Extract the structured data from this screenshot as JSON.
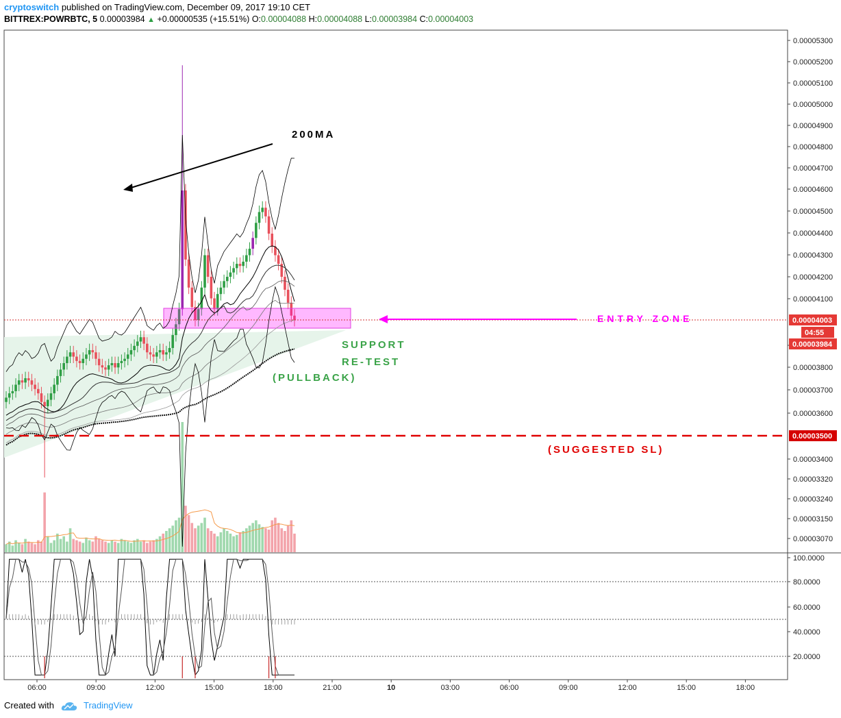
{
  "header": {
    "author": "cryptoswitch",
    "published_text": "published on TradingView.com, December 09, 2017 19:10 CET",
    "symbol": "BITTREX:POWRBTC, 5",
    "last_price": "0.00003984",
    "change": "+0.00000535 (+15.51%)",
    "o_label": "O:",
    "o_value": "0.00004088",
    "h_label": "H:",
    "h_value": "0.00004088",
    "l_label": "L:",
    "l_value": "0.00003984",
    "c_label": "C:",
    "c_value": "0.00004003"
  },
  "footer": {
    "created_with": "Created with",
    "brand": "TradingView"
  },
  "colors": {
    "up": "#2e9e44",
    "down": "#e8505b",
    "accent_magenta": "#ff00ff",
    "support_green": "#3aa348",
    "sl_red": "#e00000",
    "purple_candle": "#9c27b0"
  },
  "chart_data": {
    "type": "candlestick",
    "timeframe": "5",
    "price_axis": {
      "ticks": [
        "0.00005300",
        "0.00005200",
        "0.00005100",
        "0.00005000",
        "0.00004900",
        "0.00004800",
        "0.00004700",
        "0.00004600",
        "0.00004500",
        "0.00004400",
        "0.00004300",
        "0.00004200",
        "0.00004100",
        "0.00004000",
        "0.00003900",
        "0.00003800",
        "0.00003700",
        "0.00003600",
        "0.00003500",
        "0.00003400",
        "0.00003320",
        "0.00003240",
        "0.00003150",
        "0.00003070"
      ],
      "current_label": "0.00004003",
      "countdown": "04:55",
      "last_label": "0.00003984",
      "sl_label": "0.00003500"
    },
    "time_axis": {
      "ticks": [
        "06:00",
        "09:00",
        "12:00",
        "15:00",
        "18:00",
        "21:00",
        "10",
        "03:00",
        "06:00",
        "09:00",
        "12:00",
        "15:00",
        "18:00"
      ]
    },
    "oscillator_axis": {
      "ticks": [
        "100.0000",
        "80.0000",
        "60.0000",
        "40.0000",
        "20.0000"
      ]
    },
    "annotations": {
      "ma_label": "200MA",
      "entry_zone": "ENTRY ZONE",
      "support_line1": "SUPPORT",
      "support_line2": "RE-TEST",
      "support_line3": "(PULLBACK)",
      "suggested_sl": "(SUGGESTED SL)"
    },
    "closes": [
      3.64,
      3.66,
      3.67,
      3.7,
      3.72,
      3.71,
      3.73,
      3.72,
      3.7,
      3.68,
      3.66,
      3.62,
      3.6,
      3.63,
      3.66,
      3.7,
      3.74,
      3.77,
      3.8,
      3.83,
      3.85,
      3.83,
      3.81,
      3.8,
      3.82,
      3.84,
      3.86,
      3.85,
      3.82,
      3.79,
      3.78,
      3.77,
      3.79,
      3.8,
      3.78,
      3.8,
      3.81,
      3.82,
      3.84,
      3.86,
      3.88,
      3.9,
      3.92,
      3.89,
      3.85,
      3.84,
      3.83,
      3.85,
      3.86,
      3.84,
      3.85,
      3.87,
      3.93,
      3.98,
      4.05,
      4.6,
      4.28,
      4.15,
      4.06,
      4.0,
      4.05,
      4.15,
      4.3,
      4.2,
      4.1,
      4.05,
      4.12,
      4.15,
      4.18,
      4.2,
      4.22,
      4.24,
      4.26,
      4.25,
      4.27,
      4.3,
      4.33,
      4.38,
      4.45,
      4.5,
      4.52,
      4.48,
      4.4,
      4.34,
      4.3,
      4.26,
      4.2,
      4.14,
      4.08,
      4.02,
      4.0
    ],
    "volume": [
      6,
      8,
      5,
      9,
      7,
      6,
      10,
      8,
      7,
      6,
      9,
      8,
      45,
      12,
      7,
      9,
      14,
      10,
      12,
      8,
      18,
      10,
      9,
      8,
      7,
      11,
      9,
      8,
      12,
      10,
      9,
      8,
      7,
      9,
      8,
      7,
      10,
      9,
      8,
      7,
      9,
      10,
      8,
      9,
      7,
      8,
      9,
      10,
      12,
      14,
      16,
      18,
      20,
      24,
      26,
      98,
      35,
      28,
      22,
      18,
      20,
      22,
      26,
      18,
      16,
      14,
      12,
      15,
      18,
      16,
      14,
      12,
      13,
      15,
      16,
      18,
      20,
      22,
      24,
      21,
      19,
      18,
      17,
      24,
      26,
      22,
      18,
      16,
      20,
      24,
      14
    ]
  }
}
